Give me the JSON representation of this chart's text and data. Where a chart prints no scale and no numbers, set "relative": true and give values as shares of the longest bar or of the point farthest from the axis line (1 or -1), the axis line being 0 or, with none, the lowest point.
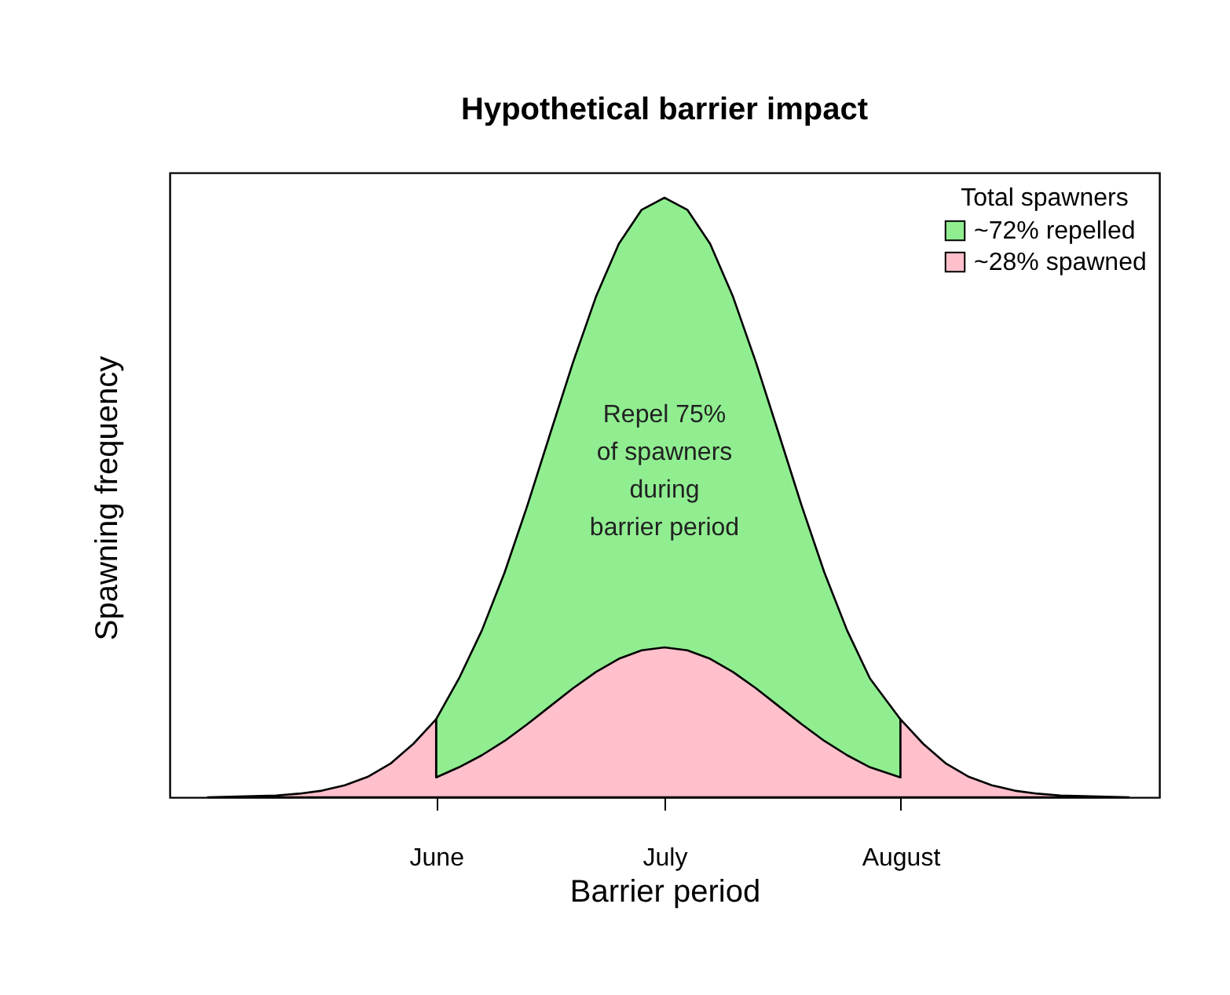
{
  "chart_data": {
    "type": "area",
    "title": "Hypothetical barrier impact",
    "xlabel": "Barrier period",
    "ylabel": "Spawning frequency",
    "legend_title": "Total spawners",
    "legend": "top right",
    "relative": true,
    "xlim": [
      "--04-27",
      "--09-04"
    ],
    "xticks": [
      {
        "value": "--06-01",
        "label": "June"
      },
      {
        "value": "--07-01",
        "label": "July"
      },
      {
        "value": "--08-01",
        "label": "August"
      }
    ],
    "annotations": [
      "Repel 75%\nof spawners\nduring\nbarrier period"
    ],
    "series": [
      {
        "name": "~72% repelled",
        "color": "#90ee90",
        "x": [
          "--06-01",
          "--06-04",
          "--06-07",
          "--06-10",
          "--06-13",
          "--06-16",
          "--06-19",
          "--06-22",
          "--06-25",
          "--06-28",
          "--07-01",
          "--07-04",
          "--07-07",
          "--07-10",
          "--07-13",
          "--07-16",
          "--07-19",
          "--07-22",
          "--07-25",
          "--07-28",
          "--08-01"
        ],
        "values": [
          0.13,
          0.198,
          0.278,
          0.375,
          0.487,
          0.607,
          0.726,
          0.835,
          0.923,
          0.98,
          1,
          0.98,
          0.923,
          0.835,
          0.726,
          0.607,
          0.487,
          0.375,
          0.278,
          0.198,
          0.13
        ]
      },
      {
        "name": "~28% spawned",
        "color": "#ffc0cb",
        "x": [
          "--05-02",
          "--05-05",
          "--05-08",
          "--05-11",
          "--05-14",
          "--05-17",
          "--05-20",
          "--05-23",
          "--05-26",
          "--05-29",
          "--06-01",
          "--06-01",
          "--06-04",
          "--06-07",
          "--06-10",
          "--06-13",
          "--06-16",
          "--06-19",
          "--06-22",
          "--06-25",
          "--06-28",
          "--07-01",
          "--07-04",
          "--07-07",
          "--07-10",
          "--07-13",
          "--07-16",
          "--07-19",
          "--07-22",
          "--07-25",
          "--07-28",
          "--08-01",
          "--08-01",
          "--08-04",
          "--08-07",
          "--08-10",
          "--08-13",
          "--08-16",
          "--08-19",
          "--08-22",
          "--08-25",
          "--08-28",
          "--08-31"
        ],
        "values": [
          0,
          0.001,
          0.002,
          0.003,
          0.006,
          0.011,
          0.02,
          0.034,
          0.056,
          0.089,
          0.13,
          0.033,
          0.05,
          0.07,
          0.094,
          0.122,
          0.152,
          0.182,
          0.209,
          0.231,
          0.245,
          0.25,
          0.245,
          0.231,
          0.209,
          0.182,
          0.152,
          0.122,
          0.094,
          0.07,
          0.05,
          0.033,
          0.13,
          0.089,
          0.056,
          0.034,
          0.02,
          0.011,
          0.006,
          0.003,
          0.002,
          0.001,
          0
        ]
      }
    ]
  }
}
